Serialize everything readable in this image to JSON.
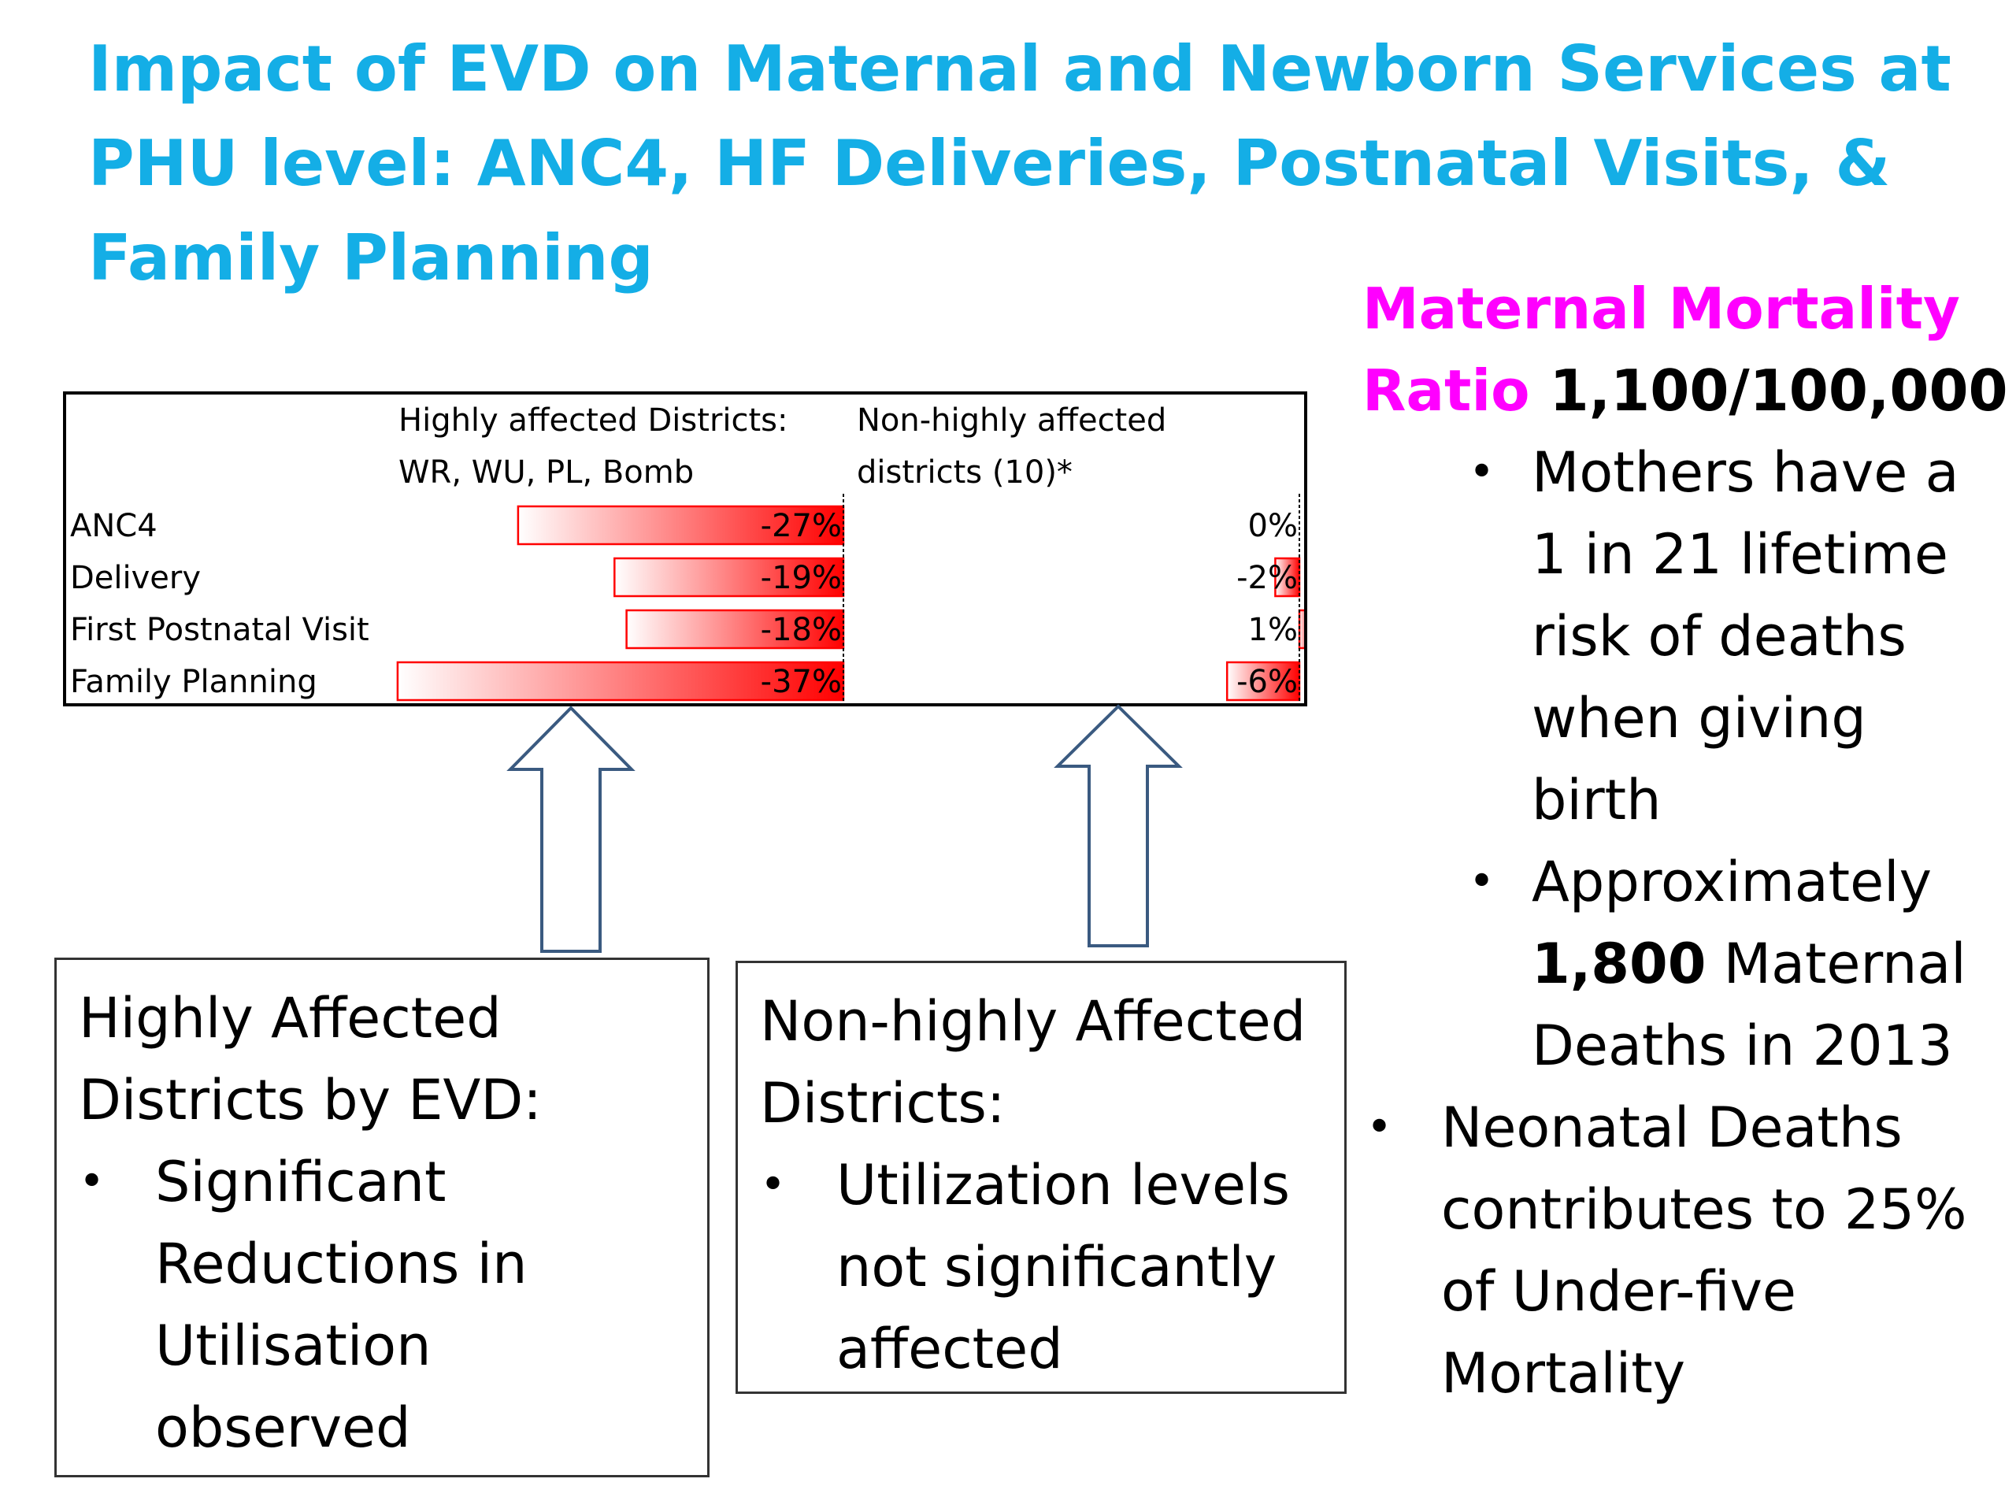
{
  "title": {
    "line1": "Impact of EVD on Maternal and Newborn Services at",
    "line2": "PHU level: ANC4, HF Deliveries, Postnatal Visits, &",
    "line3": "Family Planning"
  },
  "mmr": {
    "label_line1": "Maternal Mortality",
    "label_line2": "Ratio",
    "value": "1,100/100,000"
  },
  "right_bullets": {
    "sub1": [
      "Mothers have a",
      "1 in 21 lifetime",
      "risk of deaths",
      "when giving",
      "birth"
    ],
    "sub2_line1": "Approximately",
    "sub2_bold": "1,800",
    "sub2_line2_rest": " Maternal",
    "sub2_line3": "Deaths in 2013",
    "top": [
      "Neonatal Deaths",
      "contributes to 25%",
      "of Under-five",
      "Mortality"
    ]
  },
  "bullet_char": "•",
  "colors": {
    "title": "#14aee6",
    "mmr_label": "#ff00ff",
    "bar": "#ff0000",
    "arrow": "#3a5a80"
  },
  "chart_data": {
    "type": "bar",
    "orientation": "horizontal",
    "categories": [
      "ANC4",
      "Delivery",
      "First Postnatal Visit",
      "Family Planning"
    ],
    "series": [
      {
        "name_line1": "Highly  affected Districts:",
        "name_line2": "WR, WU, PL, Bomb",
        "values": [
          -27,
          -19,
          -18,
          -37
        ],
        "labels": [
          "-27%",
          "-19%",
          "-18%",
          "-37%"
        ]
      },
      {
        "name_line1": "Non-highly affected",
        "name_line2": "districts (10)*",
        "values": [
          0,
          -2,
          1,
          -6
        ],
        "labels": [
          "0%",
          "-2%",
          "1%",
          "-6%"
        ]
      }
    ]
  },
  "box_highly": {
    "head": [
      "Highly Affected",
      "Districts by EVD:"
    ],
    "bullet": [
      "Significant",
      "Reductions in",
      "Utilisation",
      "observed"
    ]
  },
  "box_non": {
    "head": [
      "Non-highly Affected",
      "Districts:"
    ],
    "bullet": [
      "Utilization levels",
      "not significantly",
      "affected"
    ]
  }
}
